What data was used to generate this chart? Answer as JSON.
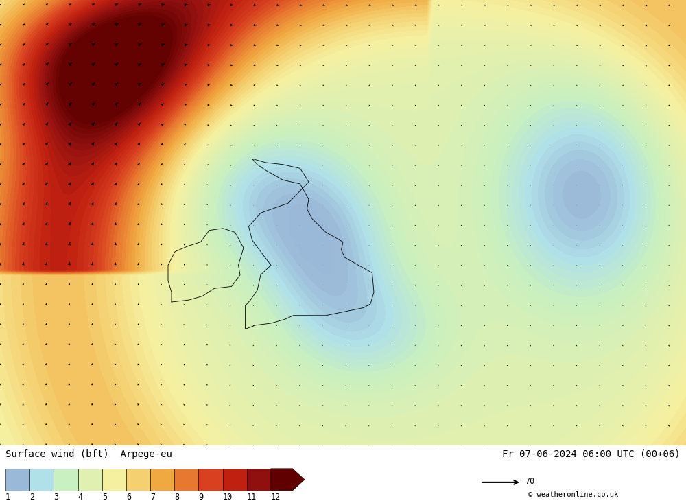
{
  "title_left": "Surface wind (bft)  Arpege-eu",
  "title_right": "Fr 07-06-2024 06:00 UTC (00+06)",
  "colorbar_values": [
    1,
    2,
    3,
    4,
    5,
    6,
    7,
    8,
    9,
    10,
    11,
    12
  ],
  "colorbar_colors": [
    "#9ab8d8",
    "#b0e0e8",
    "#c8f0c0",
    "#e0f0b0",
    "#f5f0a0",
    "#f5d070",
    "#f0a840",
    "#e87830",
    "#d84020",
    "#c02010",
    "#901010",
    "#600000"
  ],
  "background_color": "#ffffff",
  "font_family": "monospace",
  "title_fontsize": 11,
  "arrow_scale_text": "70",
  "watermark": "© weatheronline.co.uk",
  "fig_width": 10.0,
  "fig_height": 7.33,
  "dpi": 100,
  "lon_min": -20,
  "lon_max": 20,
  "lat_min": 44,
  "lat_max": 67
}
